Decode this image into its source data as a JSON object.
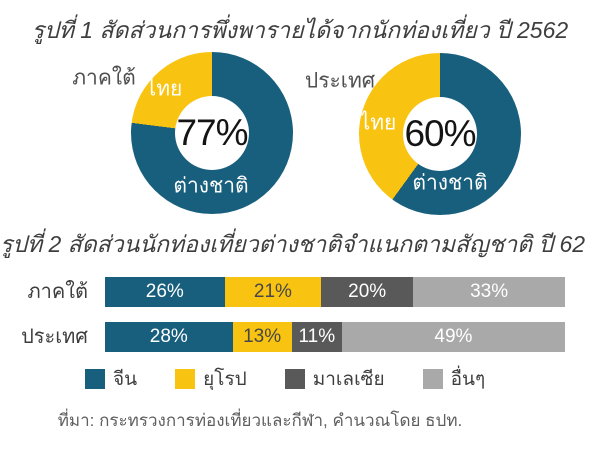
{
  "colors": {
    "blue": "#185F7E",
    "yellow": "#F9C311",
    "dark_gray": "#595959",
    "light_gray": "#A9A9A9",
    "title_text": "#3E3E3E",
    "background": "#FFFFFF"
  },
  "source": "ที่มา: กระทรวงการท่องเที่ยวและกีฬา, คำนวณโดย ธปท.",
  "chart_data": [
    {
      "type": "pie",
      "subtype": "donut-pair",
      "title": "รูปที่ 1 สัดส่วนการพึ่งพารายได้จากนักท่องเที่ยว ปี 2562",
      "charts": [
        {
          "group": "ภาคใต้",
          "center_label": "77%",
          "slices": [
            {
              "label": "ต่างชาติ",
              "value": 77,
              "color": "#185F7E"
            },
            {
              "label": "ไทย",
              "value": 23,
              "color": "#F9C311"
            }
          ]
        },
        {
          "group": "ประเทศ",
          "center_label": "60%",
          "slices": [
            {
              "label": "ต่างชาติ",
              "value": 60,
              "color": "#185F7E"
            },
            {
              "label": "ไทย",
              "value": 40,
              "color": "#F9C311"
            }
          ]
        }
      ]
    },
    {
      "type": "bar",
      "stacked": true,
      "orientation": "horizontal",
      "title": "รูปที่ 2 สัดส่วนนักท่องเที่ยวต่างชาติจำแนกตามสัญชาติ ปี 62",
      "categories": [
        "ภาคใต้",
        "ประเทศ"
      ],
      "series": [
        {
          "name": "จีน",
          "values": [
            26,
            28
          ],
          "color": "#185F7E",
          "text_color": "#FFFFFF"
        },
        {
          "name": "ยุโรป",
          "values": [
            21,
            13
          ],
          "color": "#F9C311",
          "text_color": "#474747"
        },
        {
          "name": "มาเลเซีย",
          "values": [
            20,
            11
          ],
          "color": "#595959",
          "text_color": "#FFFFFF"
        },
        {
          "name": "อื่นๆ",
          "values": [
            33,
            49
          ],
          "color": "#A9A9A9",
          "text_color": "#FFFFFF"
        }
      ],
      "value_suffix": "%",
      "xlim": [
        0,
        100
      ],
      "legend_position": "bottom",
      "grid": false
    }
  ]
}
